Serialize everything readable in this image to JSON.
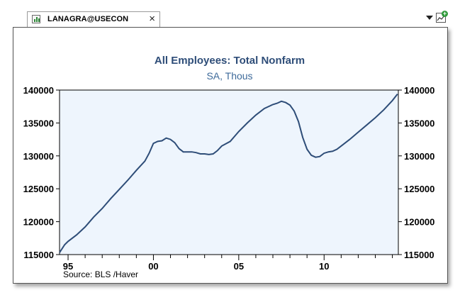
{
  "tab": {
    "label": "LANAGRA@USECON"
  },
  "icons": {
    "tab": "chart-icon",
    "close": "close-icon",
    "menu": "dropdown-arrow-icon",
    "new_chart": "new-chart-icon"
  },
  "colors": {
    "line": "#2e4d78",
    "plot_bg": "#eef5fd",
    "title": "#2e4d78"
  },
  "chart_data": {
    "type": "line",
    "title": "All Employees: Total Nonfarm",
    "subtitle": "SA, Thous",
    "source": "Source:  BLS /Haver",
    "xlabel": "",
    "ylabel": "",
    "xlim": [
      1994.5,
      2014.35
    ],
    "ylim": [
      115000,
      140000
    ],
    "x_ticks": [
      "95",
      "00",
      "05",
      "10"
    ],
    "x_tick_values": [
      1995,
      2000,
      2005,
      2010
    ],
    "y_ticks": [
      "140000",
      "135000",
      "130000",
      "125000",
      "120000",
      "115000"
    ],
    "y_tick_values": [
      140000,
      135000,
      130000,
      125000,
      120000,
      115000
    ],
    "grid": false,
    "legend": "none",
    "series": [
      {
        "x": [
          1994.5,
          1994.8,
          1995.0,
          1995.5,
          1996.0,
          1996.5,
          1997.0,
          1997.5,
          1998.0,
          1998.5,
          1999.0,
          1999.5,
          1999.75,
          2000.0,
          2000.25,
          2000.5,
          2000.75,
          2001.0,
          2001.25,
          2001.5,
          2001.75,
          2002.0,
          2002.25,
          2002.5,
          2002.75,
          2003.0,
          2003.25,
          2003.5,
          2003.75,
          2004.0,
          2004.5,
          2005.0,
          2005.5,
          2006.0,
          2006.5,
          2007.0,
          2007.25,
          2007.5,
          2007.75,
          2008.0,
          2008.25,
          2008.5,
          2008.75,
          2009.0,
          2009.25,
          2009.5,
          2009.75,
          2010.0,
          2010.25,
          2010.5,
          2010.75,
          2011.0,
          2011.5,
          2012.0,
          2012.5,
          2013.0,
          2013.5,
          2014.0,
          2014.3
        ],
        "values": [
          115300,
          116500,
          117000,
          118000,
          119200,
          120700,
          122000,
          123500,
          124900,
          126300,
          127800,
          129200,
          130400,
          131900,
          132200,
          132300,
          132700,
          132500,
          132000,
          131100,
          130600,
          130600,
          130600,
          130500,
          130300,
          130300,
          130200,
          130300,
          130800,
          131500,
          132200,
          133700,
          135000,
          136200,
          137200,
          137800,
          138000,
          138300,
          138100,
          137700,
          136800,
          135200,
          132800,
          131000,
          130100,
          129800,
          129900,
          130400,
          130600,
          130700,
          131000,
          131500,
          132500,
          133600,
          134700,
          135800,
          137000,
          138400,
          139400
        ]
      }
    ]
  }
}
